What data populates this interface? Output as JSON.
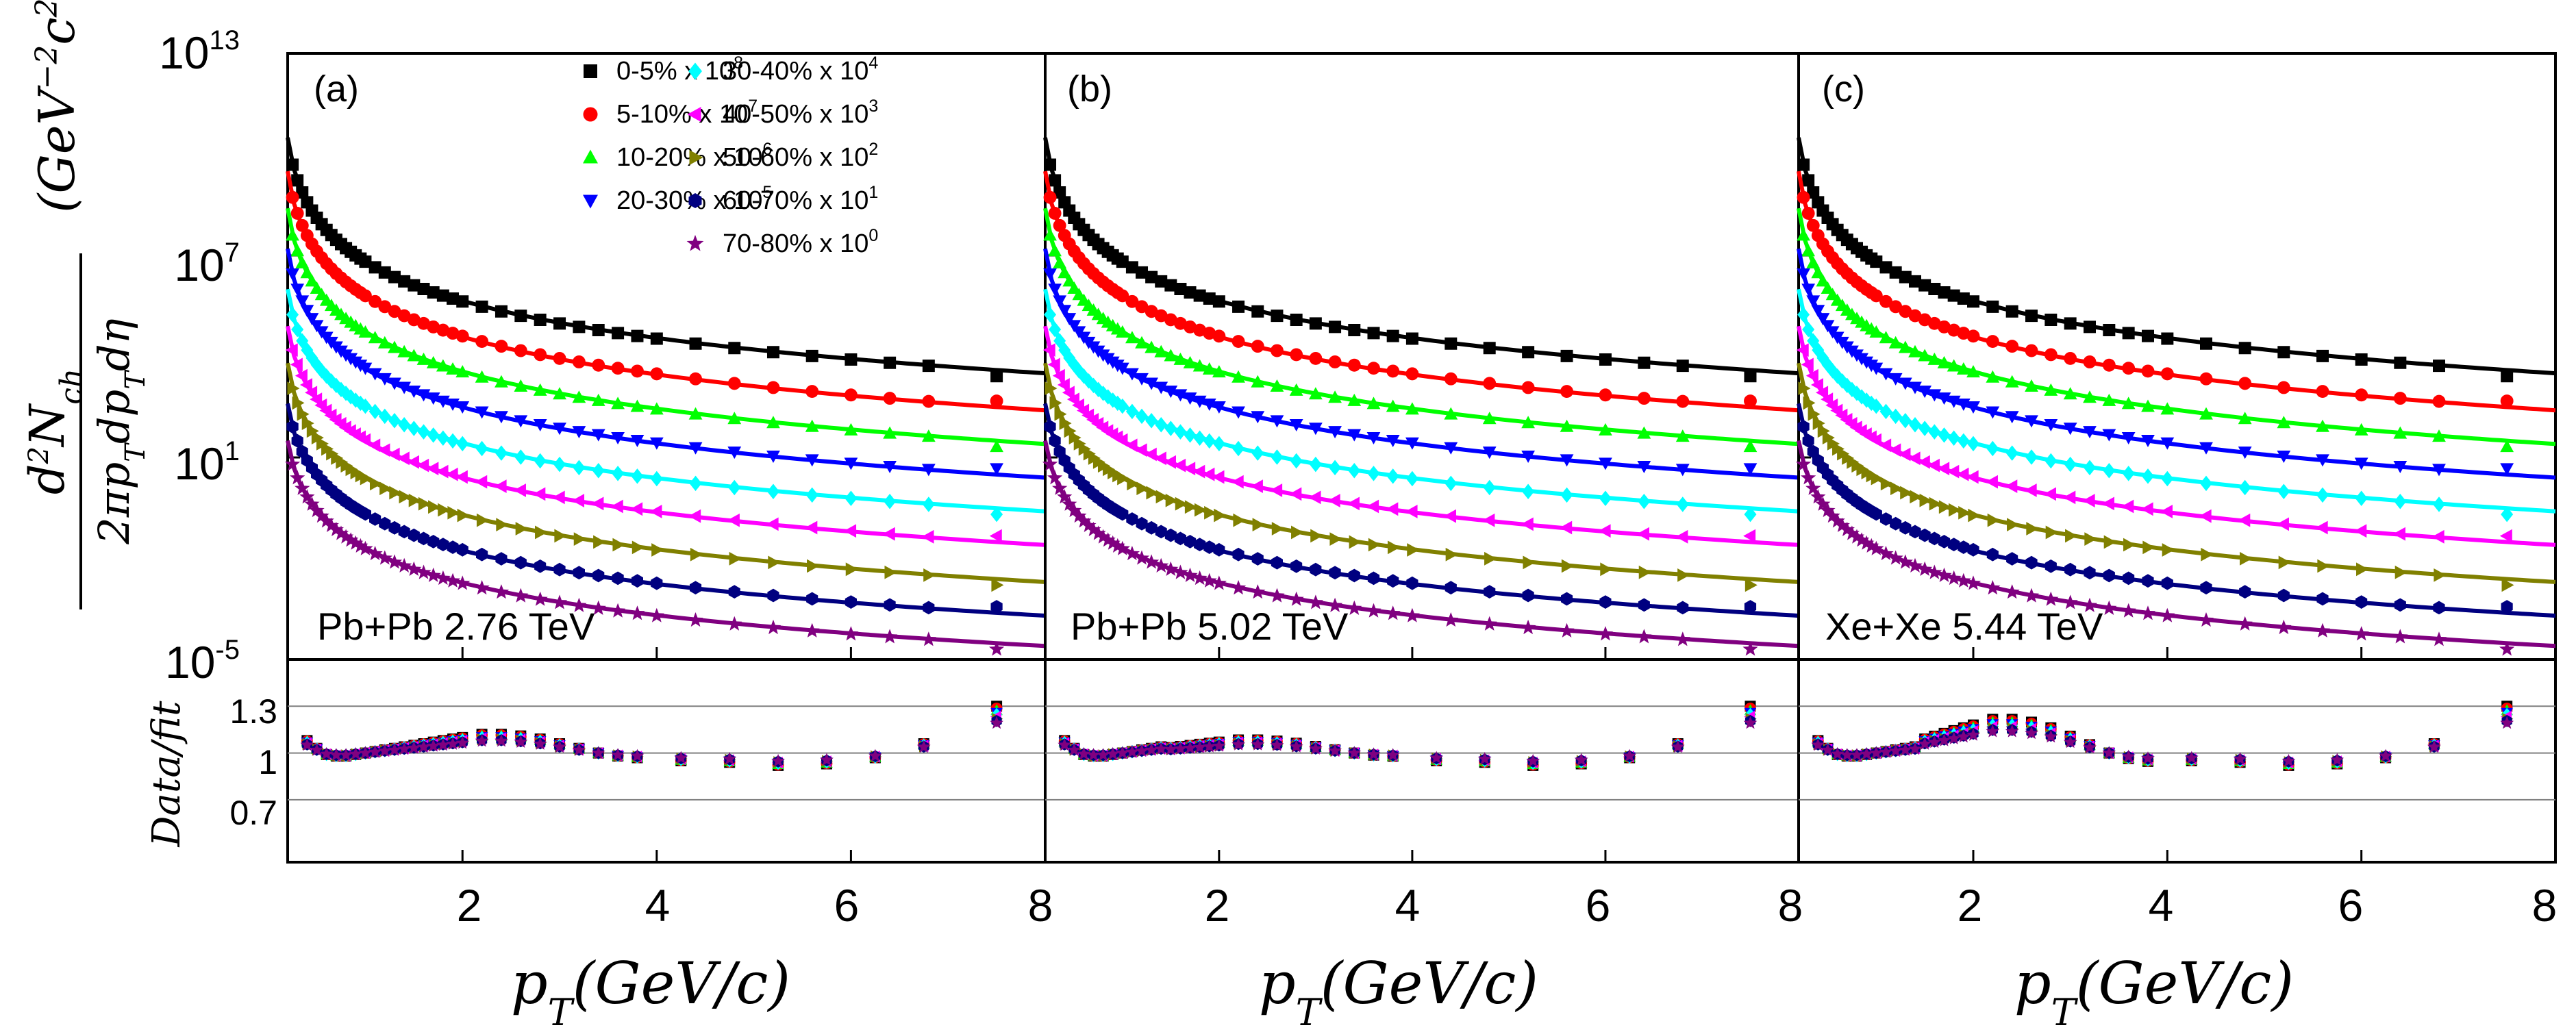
{
  "chart_data": {
    "type": "scatter",
    "description_free": true,
    "x_axis": {
      "label_main": "p",
      "label_sub": "T",
      "label_unit": "(GeV/c)",
      "range": [
        0.2,
        8
      ],
      "ticks": [
        2,
        4,
        6,
        8
      ]
    },
    "y_axis_top": {
      "scale": "log",
      "label_numerator_d": "d",
      "label_numerator_exp": "2",
      "label_numerator_N": "N",
      "label_numerator_sub": "ch",
      "label_denominator": "2πp",
      "label_denominator_sub": "T",
      "label_denominator_rest": "dp",
      "label_denominator_sub2": "T",
      "label_denominator_end": "dη",
      "label_unit_open": "(GeV",
      "label_unit_exp1": "−2",
      "label_unit_c": "c",
      "label_unit_exp2": "2",
      "label_unit_close": ")",
      "range_log10": [
        -5,
        13
      ],
      "ticks": [
        {
          "base": "10",
          "exp": "13",
          "log": 13
        },
        {
          "base": "10",
          "exp": "7",
          "log": 7
        },
        {
          "base": "10",
          "exp": "1",
          "log": 1
        },
        {
          "base": "10",
          "exp": "-5",
          "log": -5
        }
      ]
    },
    "y_axis_ratio": {
      "label": "Data/fit",
      "range": [
        0.3,
        1.6
      ],
      "ticks": [
        "1.3",
        "1",
        "0.7"
      ],
      "tick_values": [
        1.3,
        1.0,
        0.7
      ]
    },
    "panels": [
      {
        "letter": "(a)",
        "system": "Pb+Pb 2.76 TeV",
        "bump_factor": 1.0
      },
      {
        "letter": "(b)",
        "system": "Pb+Pb 5.02 TeV",
        "bump_factor": 0.7
      },
      {
        "letter": "(c)",
        "system": "Xe+Xe 5.44 TeV",
        "bump_factor": 1.8
      }
    ],
    "legend_text": {
      "mult": " x ",
      "base": "10"
    },
    "series": [
      {
        "name": "0-5%",
        "scale_exp": "8",
        "color": "#000000",
        "marker": "square",
        "fit_color": "#000000",
        "log_at_02": 10.5,
        "log_at_8": 3.5
      },
      {
        "name": "5-10%",
        "scale_exp": "7",
        "color": "#ff0000",
        "marker": "circle",
        "fit_color": "#ff0000",
        "log_at_02": 9.5,
        "log_at_8": 2.4
      },
      {
        "name": "10-20%",
        "scale_exp": "6",
        "color": "#00ff00",
        "marker": "triangle-up",
        "fit_color": "#00ff00",
        "log_at_02": 8.4,
        "log_at_8": 1.4
      },
      {
        "name": "20-30%",
        "scale_exp": "5",
        "color": "#0000ff",
        "marker": "triangle-down",
        "fit_color": "#0000ff",
        "log_at_02": 7.2,
        "log_at_8": 0.4
      },
      {
        "name": "30-40%",
        "scale_exp": "4",
        "color": "#00ffff",
        "marker": "diamond",
        "fit_color": "#00ffff",
        "log_at_02": 6.0,
        "log_at_8": -0.6
      },
      {
        "name": "40-50%",
        "scale_exp": "3",
        "color": "#ff00ff",
        "marker": "triangle-left",
        "fit_color": "#ff00ff",
        "log_at_02": 4.9,
        "log_at_8": -1.6
      },
      {
        "name": "50-60%",
        "scale_exp": "2",
        "color": "#808000",
        "marker": "triangle-right",
        "fit_color": "#808000",
        "log_at_02": 3.8,
        "log_at_8": -2.7
      },
      {
        "name": "60-70%",
        "scale_exp": "1",
        "color": "#000080",
        "marker": "hexagon",
        "fit_color": "#000080",
        "log_at_02": 2.6,
        "log_at_8": -3.7
      },
      {
        "name": "70-80%",
        "scale_exp": "0",
        "color": "#800080",
        "marker": "star",
        "fit_color": "#800080",
        "log_at_02": 1.5,
        "log_at_8": -4.6
      }
    ],
    "spectrum_x_points": [
      0.25,
      0.3,
      0.35,
      0.4,
      0.45,
      0.5,
      0.55,
      0.6,
      0.65,
      0.7,
      0.75,
      0.8,
      0.85,
      0.9,
      0.95,
      1.0,
      1.1,
      1.2,
      1.3,
      1.4,
      1.5,
      1.6,
      1.7,
      1.8,
      1.9,
      2.0,
      2.2,
      2.4,
      2.6,
      2.8,
      3.0,
      3.2,
      3.4,
      3.6,
      3.8,
      4.0,
      4.4,
      4.8,
      5.2,
      5.6,
      6.0,
      6.4,
      6.8,
      7.5
    ],
    "ratio_x_points": [
      0.4,
      0.5,
      0.6,
      0.7,
      0.8,
      0.9,
      1.0,
      1.1,
      1.2,
      1.3,
      1.4,
      1.5,
      1.6,
      1.7,
      1.8,
      1.9,
      2.0,
      2.2,
      2.4,
      2.6,
      2.8,
      3.0,
      3.2,
      3.4,
      3.6,
      3.8,
      4.25,
      4.75,
      5.25,
      5.75,
      6.25,
      6.75,
      7.5
    ],
    "ratio_values": [
      1.08,
      1.03,
      0.99,
      0.98,
      0.98,
      0.99,
      1.0,
      1.01,
      1.02,
      1.03,
      1.04,
      1.05,
      1.06,
      1.07,
      1.08,
      1.09,
      1.1,
      1.12,
      1.12,
      1.11,
      1.09,
      1.06,
      1.03,
      1.0,
      0.98,
      0.97,
      0.95,
      0.94,
      0.92,
      0.93,
      0.97,
      1.06,
      1.3
    ]
  }
}
